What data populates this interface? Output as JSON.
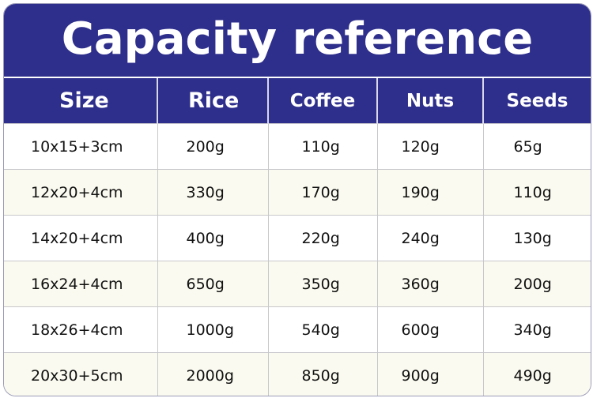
{
  "title": "Capacity reference",
  "table": {
    "headers": [
      "Size",
      "Rice",
      "Coffee",
      "Nuts",
      "Seeds"
    ],
    "rows": [
      [
        "10x15+3cm",
        "200g",
        "110g",
        "120g",
        "65g"
      ],
      [
        "12x20+4cm",
        "330g",
        "170g",
        "190g",
        "110g"
      ],
      [
        "14x20+4cm",
        "400g",
        "220g",
        "240g",
        "130g"
      ],
      [
        "16x24+4cm",
        "650g",
        "350g",
        "360g",
        "200g"
      ],
      [
        "18x26+4cm",
        "1000g",
        "540g",
        "600g",
        "340g"
      ],
      [
        "20x30+5cm",
        "2000g",
        "850g",
        "900g",
        "490g"
      ]
    ]
  },
  "colors": {
    "header_bg": "#2e2e8c",
    "header_text": "#ffffff",
    "row_alt_bg": "#fbfaf0",
    "row_bg": "#ffffff"
  }
}
